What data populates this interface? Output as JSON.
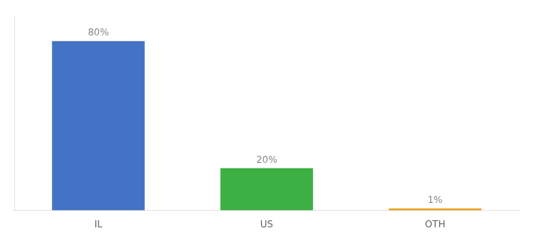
{
  "chart_data": {
    "type": "bar",
    "categories": [
      "IL",
      "US",
      "OTH"
    ],
    "values": [
      80,
      20,
      1
    ],
    "value_labels": [
      "80%",
      "20%",
      "1%"
    ],
    "data_labels": true,
    "colors": [
      "#4472c4",
      "#3cb043",
      "#e8a020"
    ],
    "ylim": [
      0,
      92
    ],
    "grid": false,
    "tick_labels": "x"
  }
}
